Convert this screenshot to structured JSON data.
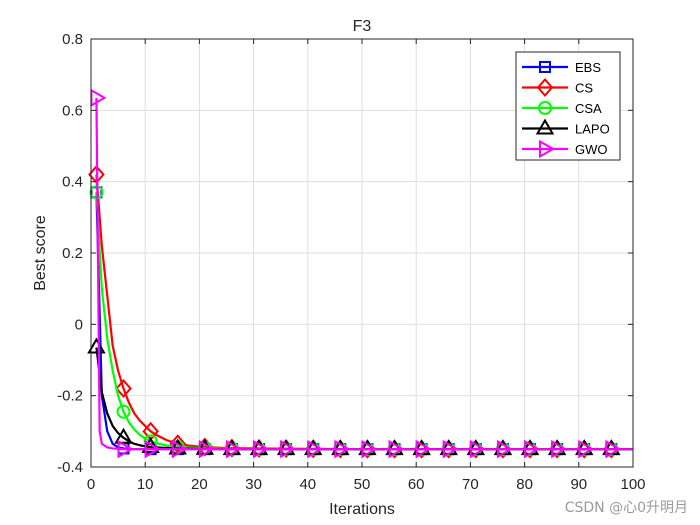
{
  "chart_data": {
    "type": "line",
    "title": "F3",
    "xlabel": "Iterations",
    "ylabel": "Best score",
    "xlim": [
      0,
      100
    ],
    "ylim": [
      -0.4,
      0.8
    ],
    "xticks": [
      0,
      10,
      20,
      30,
      40,
      50,
      60,
      70,
      80,
      90,
      100
    ],
    "yticks": [
      -0.4,
      -0.2,
      0,
      0.2,
      0.4,
      0.6,
      0.8
    ],
    "grid": true,
    "legend_position": "top-right",
    "series": [
      {
        "name": "EBS",
        "color": "#0000ff",
        "marker": "square",
        "x": [
          1,
          2,
          3,
          4,
          5,
          6,
          7,
          8,
          10,
          12,
          15,
          20,
          30,
          40,
          50,
          60,
          70,
          80,
          90,
          100
        ],
        "y": [
          0.37,
          -0.2,
          -0.3,
          -0.335,
          -0.345,
          -0.348,
          -0.349,
          -0.35,
          -0.35,
          -0.35,
          -0.35,
          -0.35,
          -0.35,
          -0.35,
          -0.35,
          -0.35,
          -0.35,
          -0.35,
          -0.35,
          -0.35
        ],
        "marker_x": [
          1,
          6,
          11,
          16,
          21,
          26,
          31,
          36,
          41,
          46,
          51,
          56,
          61,
          66,
          71,
          76,
          81,
          86,
          91,
          96
        ]
      },
      {
        "name": "CS",
        "color": "#ff0000",
        "marker": "diamond",
        "x": [
          1,
          2,
          3,
          4,
          5,
          6,
          7,
          8,
          9,
          10,
          11,
          12,
          14,
          16,
          18,
          20,
          22,
          25,
          30,
          40,
          50,
          60,
          70,
          80,
          90,
          100
        ],
        "y": [
          0.42,
          0.22,
          0.08,
          -0.06,
          -0.13,
          -0.18,
          -0.22,
          -0.25,
          -0.27,
          -0.285,
          -0.3,
          -0.31,
          -0.325,
          -0.335,
          -0.34,
          -0.343,
          -0.345,
          -0.347,
          -0.348,
          -0.349,
          -0.35,
          -0.35,
          -0.35,
          -0.35,
          -0.35,
          -0.35
        ],
        "marker_x": [
          1,
          6,
          11,
          16,
          21,
          26,
          31,
          36,
          41,
          46,
          51,
          56,
          61,
          66,
          71,
          76,
          81,
          86,
          91,
          96
        ]
      },
      {
        "name": "CSA",
        "color": "#00ff00",
        "marker": "circle",
        "x": [
          1,
          2,
          3,
          4,
          5,
          6,
          7,
          8,
          9,
          10,
          11,
          12,
          14,
          16,
          20,
          25,
          30,
          40,
          50,
          60,
          70,
          80,
          90,
          100
        ],
        "y": [
          0.37,
          0.1,
          -0.04,
          -0.13,
          -0.2,
          -0.245,
          -0.275,
          -0.295,
          -0.31,
          -0.32,
          -0.328,
          -0.333,
          -0.34,
          -0.344,
          -0.347,
          -0.349,
          -0.35,
          -0.35,
          -0.35,
          -0.35,
          -0.35,
          -0.35,
          -0.35,
          -0.35
        ],
        "marker_x": [
          1,
          6,
          11,
          16,
          21,
          26,
          31,
          36,
          41,
          46,
          51,
          56,
          61,
          66,
          71,
          76,
          81,
          86,
          91,
          96
        ]
      },
      {
        "name": "LAPO",
        "color": "#000000",
        "marker": "triangle-up",
        "x": [
          1,
          2,
          3,
          4,
          5,
          6,
          7,
          8,
          9,
          10,
          11,
          13,
          16,
          20,
          25,
          30,
          40,
          50,
          60,
          70,
          80,
          90,
          100
        ],
        "y": [
          -0.065,
          -0.19,
          -0.25,
          -0.285,
          -0.305,
          -0.318,
          -0.328,
          -0.335,
          -0.339,
          -0.342,
          -0.344,
          -0.346,
          -0.348,
          -0.349,
          -0.35,
          -0.35,
          -0.35,
          -0.35,
          -0.35,
          -0.35,
          -0.35,
          -0.35,
          -0.35
        ],
        "marker_x": [
          1,
          6,
          11,
          16,
          21,
          26,
          31,
          36,
          41,
          46,
          51,
          56,
          61,
          66,
          71,
          76,
          81,
          86,
          91,
          96
        ]
      },
      {
        "name": "GWO",
        "color": "#ff00ff",
        "marker": "triangle-right",
        "x": [
          1,
          1.6,
          2,
          3,
          4,
          5,
          6,
          8,
          10,
          15,
          20,
          30,
          40,
          50,
          60,
          70,
          80,
          90,
          100
        ],
        "y": [
          0.635,
          -0.3,
          -0.335,
          -0.345,
          -0.348,
          -0.349,
          -0.35,
          -0.35,
          -0.35,
          -0.35,
          -0.35,
          -0.35,
          -0.35,
          -0.35,
          -0.35,
          -0.35,
          -0.35,
          -0.35,
          -0.35
        ],
        "marker_x": [
          1,
          6,
          11,
          16,
          21,
          26,
          31,
          36,
          41,
          46,
          51,
          56,
          61,
          66,
          71,
          76,
          81,
          86,
          91,
          96
        ]
      }
    ]
  },
  "watermark": "CSDN @心0升明月"
}
